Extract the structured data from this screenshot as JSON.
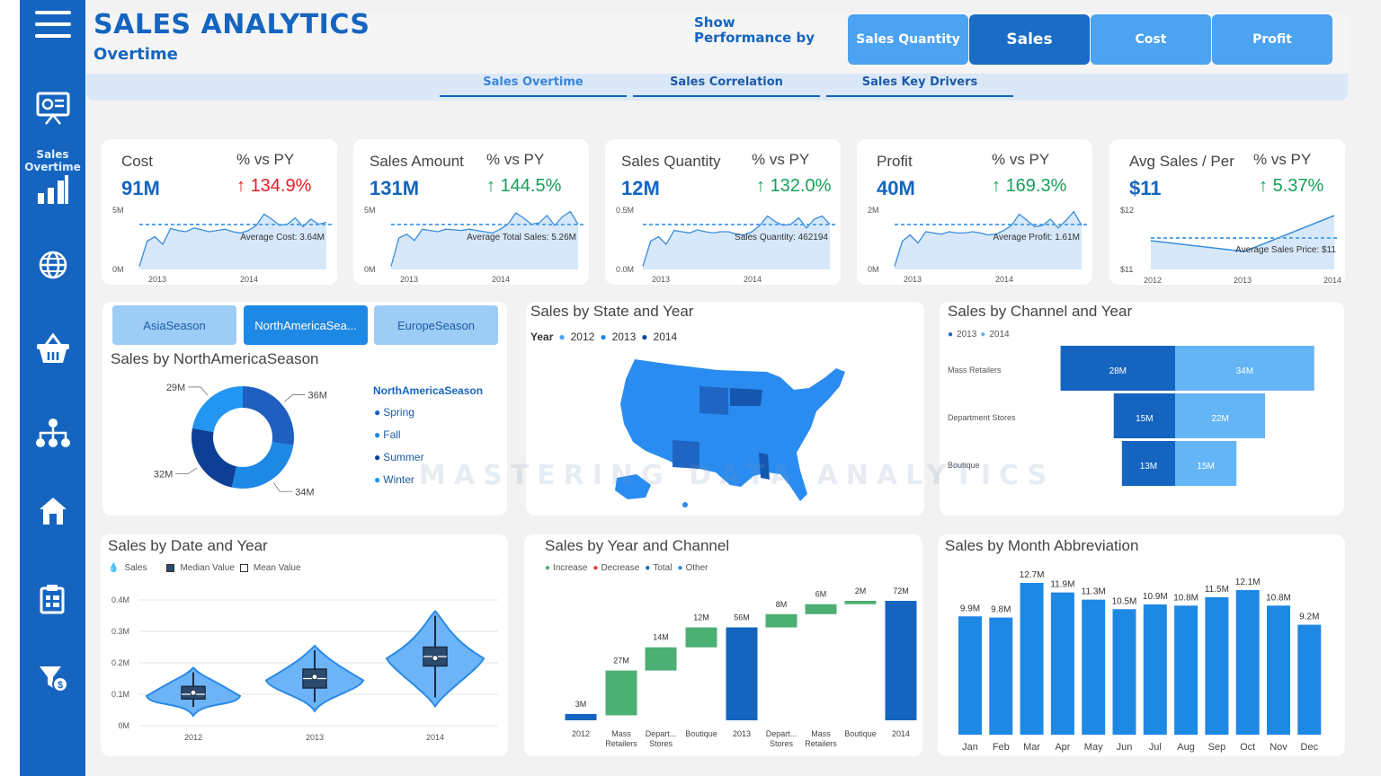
{
  "header": {
    "title": "SALES ANALYTICS",
    "subtitle": "Overtime",
    "show_performance_by": "Show Performance by",
    "toggles": [
      "Sales Quantity",
      "Sales",
      "Cost",
      "Profit"
    ],
    "active_toggle": "Sales"
  },
  "nav": {
    "tabs": [
      "Sales Overtime",
      "Sales Correlation",
      "Sales Key Drivers"
    ],
    "active": "Sales Overtime"
  },
  "sidebar": {
    "items": [
      {
        "icon": "menu-icon"
      },
      {
        "icon": "presentation-icon"
      },
      {
        "icon": "bar-chart-icon",
        "label_line1": "Sales",
        "label_line2": "Overtime"
      },
      {
        "icon": "globe-icon"
      },
      {
        "icon": "basket-icon"
      },
      {
        "icon": "hierarchy-icon"
      },
      {
        "icon": "home-icon"
      },
      {
        "icon": "clipboard-icon"
      },
      {
        "icon": "filter-dollar-icon"
      }
    ]
  },
  "kpis": [
    {
      "label": "Cost",
      "value": "91M",
      "pct_label": "% vs PY",
      "pct": "134.9%",
      "trend": "up",
      "status": "red",
      "avg_label": "Average Cost: 3.64M",
      "y_top": "5M",
      "y_bottom": "0M",
      "x_labels": [
        "2013",
        "2014"
      ]
    },
    {
      "label": "Sales Amount",
      "value": "131M",
      "pct_label": "% vs PY",
      "pct": "144.5%",
      "trend": "up",
      "status": "green",
      "avg_label": "Average Total Sales: 5.26M",
      "y_top": "5M",
      "y_bottom": "0M",
      "x_labels": [
        "2013",
        "2014"
      ]
    },
    {
      "label": "Sales Quantity",
      "value": "12M",
      "pct_label": "% vs PY",
      "pct": "132.0%",
      "trend": "up",
      "status": "green",
      "avg_label": "Sales Quantity: 462194",
      "y_top": "0.5M",
      "y_bottom": "0.0M",
      "x_labels": [
        "2013",
        "2014"
      ]
    },
    {
      "label": "Profit",
      "value": "40M",
      "pct_label": "% vs PY",
      "pct": "169.3%",
      "trend": "up",
      "status": "green",
      "avg_label": "Average Profit: 1.61M",
      "y_top": "2M",
      "y_bottom": "0M",
      "x_labels": [
        "2013",
        "2014"
      ]
    },
    {
      "label": "Avg Sales / Per",
      "value": "$11",
      "pct_label": "% vs PY",
      "pct": "5.37%",
      "trend": "up",
      "status": "green",
      "avg_label": "Average Sales Price: $11",
      "y_top": "$12",
      "y_bottom": "$11",
      "x_labels": [
        "2012",
        "2013",
        "2014"
      ]
    }
  ],
  "seasons": {
    "buttons": [
      "AsiaSeason",
      "NorthAmericaSea...",
      "EuropeSeason"
    ],
    "active": "NorthAmericaSea...",
    "title": "Sales by NorthAmericaSeason",
    "legend_title": "NorthAmericaSeason",
    "legend": [
      {
        "name": "Spring",
        "color": "#1e88e5"
      },
      {
        "name": "Fall",
        "color": "#1e88e5"
      },
      {
        "name": "Summer",
        "color": "#0d47a1"
      },
      {
        "name": "Winter",
        "color": "#2196f3"
      }
    ]
  },
  "map": {
    "title": "Sales by State and Year",
    "legend_title": "Year",
    "legend": [
      {
        "name": "2012",
        "color": "#42a5f5"
      },
      {
        "name": "2013",
        "color": "#1e88e5"
      },
      {
        "name": "2014",
        "color": "#0d47a1"
      }
    ]
  },
  "channel_year": {
    "title": "Sales by Channel and Year",
    "legend": [
      {
        "name": "2013",
        "color": "#1565c0"
      },
      {
        "name": "2014",
        "color": "#64b5f6"
      }
    ]
  },
  "violin": {
    "title": "Sales by Date and Year",
    "legend": [
      "Sales",
      "Median Value",
      "Mean Value"
    ]
  },
  "waterfall": {
    "title": "Sales by Year and Channel",
    "legend": [
      {
        "name": "Increase",
        "color": "#4caf73"
      },
      {
        "name": "Decrease",
        "color": "#e53935"
      },
      {
        "name": "Total",
        "color": "#1565c0"
      },
      {
        "name": "Other",
        "color": "#1e88e5"
      }
    ]
  },
  "monthly": {
    "title": "Sales by Month Abbreviation"
  },
  "watermark": "MASTERING DATA ANALYTICS",
  "chart_data": [
    {
      "type": "pie",
      "title": "Sales by NorthAmericaSeason",
      "categories": [
        "Spring",
        "Fall",
        "Summer",
        "Winter"
      ],
      "labels": [
        "36M",
        "34M",
        "32M",
        "29M"
      ],
      "values": [
        36,
        34,
        32,
        29
      ],
      "colors": [
        "#1e5fbf",
        "#1e88e5",
        "#0d3f96",
        "#2196f3"
      ],
      "donut": true
    },
    {
      "type": "bar",
      "title": "Sales by Channel and Year",
      "categories": [
        "Mass Retailers",
        "Department Stores",
        "Boutique"
      ],
      "series": [
        {
          "name": "2013",
          "values": [
            28,
            15,
            13
          ],
          "labels": [
            "28M",
            "15M",
            "13M"
          ],
          "color": "#1565c0"
        },
        {
          "name": "2014",
          "values": [
            34,
            22,
            15
          ],
          "labels": [
            "34M",
            "22M",
            "15M"
          ],
          "color": "#64b5f6"
        }
      ],
      "orientation": "horizontal-funnel"
    },
    {
      "type": "scatter",
      "title": "Sales by Date and Year",
      "categories": [
        "2012",
        "2013",
        "2014"
      ],
      "y_ticks": [
        "0M",
        "0.1M",
        "0.2M",
        "0.3M",
        "0.4M"
      ],
      "ylim": [
        0,
        0.4
      ],
      "median": [
        0.1,
        0.15,
        0.22
      ],
      "mean": [
        0.105,
        0.155,
        0.215
      ],
      "q1": [
        0.085,
        0.12,
        0.19
      ],
      "q3": [
        0.125,
        0.18,
        0.25
      ],
      "min": [
        0.06,
        0.075,
        0.09
      ],
      "max": [
        0.17,
        0.24,
        0.35
      ],
      "chart_kind": "violin"
    },
    {
      "type": "bar",
      "title": "Sales by Year and Channel",
      "chart_kind": "waterfall",
      "categories": [
        "2012",
        "Mass Retailers",
        "Depart... Stores",
        "Boutique",
        "2013",
        "Depart... Stores",
        "Mass Retailers",
        "Boutique",
        "2014"
      ],
      "values": [
        3,
        27,
        14,
        12,
        56,
        8,
        6,
        2,
        72
      ],
      "labels": [
        "3M",
        "27M",
        "14M",
        "12M",
        "56M",
        "8M",
        "6M",
        "2M",
        "72M"
      ],
      "kinds": [
        "total",
        "increase",
        "increase",
        "increase",
        "total",
        "increase",
        "increase",
        "increase",
        "total"
      ]
    },
    {
      "type": "bar",
      "title": "Sales by Month Abbreviation",
      "categories": [
        "Jan",
        "Feb",
        "Mar",
        "Apr",
        "May",
        "Jun",
        "Jul",
        "Aug",
        "Sep",
        "Oct",
        "Nov",
        "Dec"
      ],
      "values": [
        9.9,
        9.8,
        12.7,
        11.9,
        11.3,
        10.5,
        10.9,
        10.8,
        11.5,
        12.1,
        10.8,
        9.2
      ],
      "labels": [
        "9.9M",
        "9.8M",
        "12.7M",
        "11.9M",
        "11.3M",
        "10.5M",
        "10.9M",
        "10.8M",
        "11.5M",
        "12.1M",
        "10.8M",
        "9.2M"
      ],
      "color": "#1e88e5"
    }
  ]
}
